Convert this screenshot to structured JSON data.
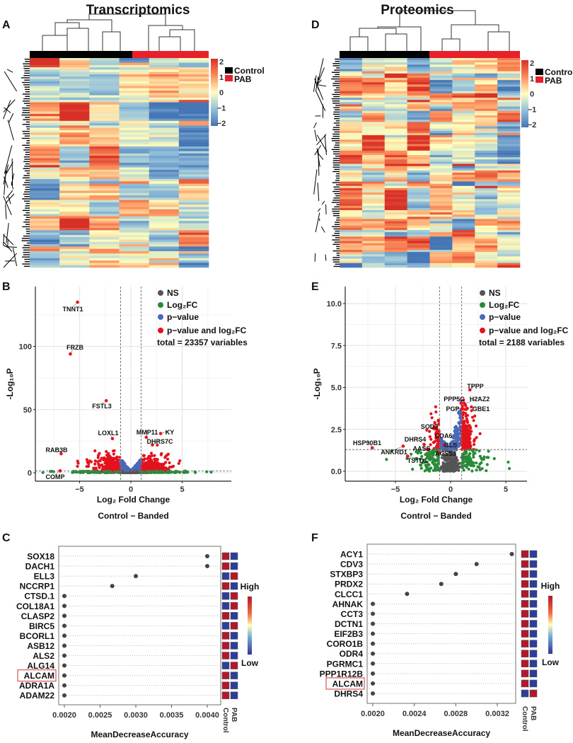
{
  "panel_letters": {
    "A": "A",
    "B": "B",
    "C": "C",
    "D": "D",
    "E": "E",
    "F": "F"
  },
  "titles": {
    "transcriptomics": "Transcriptomics",
    "proteomics": "Proteomics"
  },
  "colors": {
    "control": "#000000",
    "pab": "#e8202a",
    "ns": "#555555",
    "log2fc": "#2a8a3a",
    "pvalue": "#4a68b8",
    "both": "#e3121c",
    "high": "#b2182b",
    "low": "#2c3e9c",
    "highlight_box": "#e06060"
  },
  "chart_data": [
    {
      "id": "heatmapA",
      "type": "heatmap",
      "groups": [
        "Control",
        "PAB"
      ],
      "color_range": [
        -2,
        2
      ],
      "colorbar_ticks": [
        "2",
        "1",
        "0",
        "−1",
        "−2"
      ]
    },
    {
      "id": "heatmapD",
      "type": "heatmap",
      "groups": [
        "Control",
        "PAB"
      ],
      "color_range": [
        -2,
        2
      ],
      "colorbar_ticks": [
        "2",
        "1",
        "0",
        "−1",
        "−2"
      ]
    },
    {
      "id": "volcanoB",
      "type": "scatter",
      "legend": [
        "NS",
        "Log₂FC",
        "p−value",
        "p−value and log₂FC"
      ],
      "total": "total = 23357 variables",
      "xlabel": "Log₂ Fold Change",
      "subtitle": "Control − Banded",
      "ylabel": "-Log₁₀P",
      "xlim": [
        -9.4,
        9.8
      ],
      "ylim": [
        -7,
        147
      ],
      "xticks": [
        -5,
        0,
        5
      ],
      "yticks": [
        0,
        50,
        100
      ],
      "fc_cutoff": 1,
      "p_cutoff": 1.3,
      "labeled": [
        {
          "label": "TNNT1",
          "x": -5.2,
          "y": 135
        },
        {
          "label": "FRZB",
          "x": -5.9,
          "y": 94
        },
        {
          "label": "FSTL3",
          "x": -2.4,
          "y": 57
        },
        {
          "label": "LOXL1",
          "x": -1.8,
          "y": 27
        },
        {
          "label": "MMP11",
          "x": 1.5,
          "y": 28
        },
        {
          "label": "KY",
          "x": 2.9,
          "y": 31
        },
        {
          "label": "DHRS7C",
          "x": 2.1,
          "y": 22
        },
        {
          "label": "RAB3B",
          "x": -6.8,
          "y": 15
        },
        {
          "label": "COMP",
          "x": -6.9,
          "y": 1.5
        }
      ]
    },
    {
      "id": "volcanoE",
      "type": "scatter",
      "legend": [
        "NS",
        "Log₂FC",
        "p−value",
        "p−value and log₂FC"
      ],
      "total": "total = 2188 variables",
      "xlabel": "Log₂ Fold Change",
      "subtitle": "Control − Banded",
      "ylabel": "-Log₁₀P",
      "xlim": [
        -9.5,
        6.9
      ],
      "ylim": [
        -0.6,
        11
      ],
      "xticks": [
        -5,
        0,
        5
      ],
      "yticks": [
        0,
        2.5,
        5,
        7.5,
        10
      ],
      "ytick_labels": [
        "0.0",
        "2.5",
        "5.0",
        "7.5",
        "10.0"
      ],
      "fc_cutoff": 1,
      "p_cutoff": 1.3,
      "labeled": [
        {
          "label": "TPPP",
          "x": 1.75,
          "y": 4.85
        },
        {
          "label": "PPP5C",
          "x": 0.95,
          "y": 4.05
        },
        {
          "label": "H2AZ2",
          "x": 1.3,
          "y": 4.0
        },
        {
          "label": "PGP",
          "x": 1.0,
          "y": 3.7
        },
        {
          "label": "GBE1",
          "x": 1.5,
          "y": 3.75
        },
        {
          "label": "SOD2",
          "x": -1.3,
          "y": 2.3
        },
        {
          "label": "COA6",
          "x": -1.1,
          "y": 1.8
        },
        {
          "label": "DHRS4",
          "x": -2.4,
          "y": 1.6
        },
        {
          "label": "GLS",
          "x": -0.6,
          "y": 1.55
        },
        {
          "label": "HSP90B1",
          "x": -7.1,
          "y": 1.4
        },
        {
          "label": "ANKRD1",
          "x": -4.3,
          "y": 1.5
        },
        {
          "label": "AASS",
          "x": -2.1,
          "y": 1.3
        },
        {
          "label": "ACSS3",
          "x": -1.0,
          "y": 1.1
        },
        {
          "label": "TSTD1",
          "x": -3.9,
          "y": 0.9
        }
      ]
    },
    {
      "id": "dotC",
      "type": "scatter",
      "genes": [
        "SOX18",
        "DACH1",
        "ELL3",
        "NCCRP1",
        "CTSD.1",
        "COL18A1",
        "CLASP2",
        "BIRC5",
        "BCORL1",
        "ASB12",
        "ALS2",
        "ALG14",
        "ALCAM",
        "ADRA1A",
        "ADAM22"
      ],
      "values": [
        0.004,
        0.004,
        0.003,
        0.00267,
        0.002,
        0.002,
        0.002,
        0.002,
        0.002,
        0.002,
        0.002,
        0.002,
        0.002,
        0.002,
        0.002
      ],
      "heat": [
        [
          "high",
          "low"
        ],
        [
          "high",
          "low"
        ],
        [
          "low",
          "high"
        ],
        [
          "high",
          "low"
        ],
        [
          "low",
          "high"
        ],
        [
          "low",
          "high"
        ],
        [
          "high",
          "low"
        ],
        [
          "low",
          "high"
        ],
        [
          "high",
          "low"
        ],
        [
          "high",
          "low"
        ],
        [
          "high",
          "low"
        ],
        [
          "low",
          "high"
        ],
        [
          "high",
          "low"
        ],
        [
          "high",
          "low"
        ],
        [
          "high",
          "low"
        ]
      ],
      "xlim": [
        0.00195,
        0.00407
      ],
      "xticks": [
        0.002,
        0.0025,
        0.003,
        0.0035,
        0.004
      ],
      "xtick_labels": [
        "0.0020",
        "0.0025",
        "0.0030",
        "0.0035",
        "0.0040"
      ],
      "xlabel": "MeanDecreaseAccuracy",
      "columns": [
        "Control",
        "PAB"
      ],
      "legend": {
        "high": "High",
        "low": "Low"
      },
      "highlighted": "ALCAM"
    },
    {
      "id": "dotF",
      "type": "scatter",
      "genes": [
        "ACY1",
        "CDV3",
        "STXBP3",
        "PRDX2",
        "CLCC1",
        "AHNAK",
        "CCT3",
        "DCTN1",
        "EIF2B3",
        "CORO1B",
        "ODR4",
        "PGRMC1",
        "PPP1R12B",
        "ALCAM",
        "DHRS4"
      ],
      "values": [
        0.00334,
        0.003,
        0.0028,
        0.00266,
        0.00233,
        0.002,
        0.002,
        0.002,
        0.002,
        0.002,
        0.002,
        0.002,
        0.002,
        0.002,
        0.002
      ],
      "heat": [
        [
          "high",
          "low"
        ],
        [
          "high",
          "low"
        ],
        [
          "high",
          "low"
        ],
        [
          "high",
          "low"
        ],
        [
          "high",
          "low"
        ],
        [
          "high",
          "low"
        ],
        [
          "high",
          "low"
        ],
        [
          "high",
          "low"
        ],
        [
          "high",
          "low"
        ],
        [
          "high",
          "low"
        ],
        [
          "high",
          "low"
        ],
        [
          "high",
          "low"
        ],
        [
          "high",
          "low"
        ],
        [
          "high",
          "low"
        ],
        [
          "low",
          "high"
        ]
      ],
      "xlim": [
        0.00195,
        0.00343
      ],
      "xticks": [
        0.002,
        0.0024,
        0.0028,
        0.0032
      ],
      "xtick_labels": [
        "0.0020",
        "0.0024",
        "0.0028",
        "0.0032"
      ],
      "xlabel": "MeanDecreaseAccuracy",
      "columns": [
        "Control",
        "PAB"
      ],
      "legend": {
        "high": "High",
        "low": "Low"
      },
      "highlighted": "ALCAM"
    }
  ]
}
